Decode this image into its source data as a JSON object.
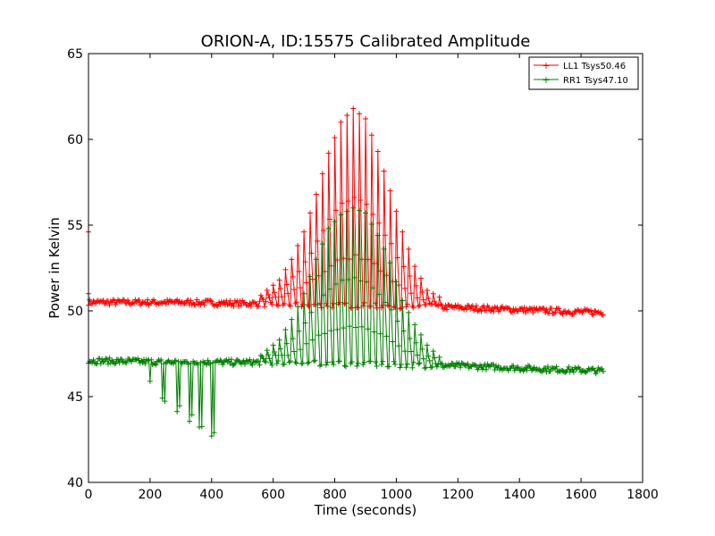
{
  "chart_data": {
    "type": "line",
    "title": "ORION-A, ID:15575 Calibrated Amplitude",
    "xlabel": "Time (seconds)",
    "ylabel": "Power in Kelvin",
    "xlim": [
      0,
      1800
    ],
    "ylim": [
      40,
      65
    ],
    "xticks": [
      "0",
      "200",
      "400",
      "600",
      "800",
      "1000",
      "1200",
      "1400",
      "1600",
      "1800"
    ],
    "yticks": [
      "40",
      "45",
      "50",
      "55",
      "60",
      "65"
    ],
    "grid": false,
    "legend_position": "top-right",
    "series": [
      {
        "name": "LL1 Tsys50.46",
        "color": "#ff0000",
        "marker": "+",
        "baseline": [
          [
            0,
            50.5
          ],
          [
            300,
            50.5
          ],
          [
            600,
            50.4
          ],
          [
            900,
            50.3
          ],
          [
            1200,
            50.2
          ],
          [
            1500,
            50.0
          ],
          [
            1675,
            49.9
          ]
        ],
        "spike_start": [
          0,
          54.6
        ],
        "peak_envelope": [
          [
            560,
            50.9
          ],
          [
            620,
            51.8
          ],
          [
            660,
            53.0
          ],
          [
            700,
            54.6
          ],
          [
            740,
            56.8
          ],
          [
            780,
            59.2
          ],
          [
            820,
            61.0
          ],
          [
            860,
            61.8
          ],
          [
            900,
            61.2
          ],
          [
            940,
            59.3
          ],
          [
            980,
            57.0
          ],
          [
            1020,
            54.6
          ],
          [
            1060,
            52.6
          ],
          [
            1100,
            51.2
          ],
          [
            1140,
            50.8
          ]
        ]
      },
      {
        "name": "RR1 Tsys47.10",
        "color": "#008000",
        "marker": "+",
        "baseline": [
          [
            0,
            47.1
          ],
          [
            300,
            47.0
          ],
          [
            600,
            47.0
          ],
          [
            900,
            46.9
          ],
          [
            1200,
            46.8
          ],
          [
            1500,
            46.6
          ],
          [
            1675,
            46.5
          ]
        ],
        "spike_start": [
          0,
          51.0
        ],
        "dips": [
          [
            200,
            45.5
          ],
          [
            245,
            44.5
          ],
          [
            290,
            44.0
          ],
          [
            330,
            43.5
          ],
          [
            365,
            43.2
          ],
          [
            405,
            42.6
          ]
        ],
        "peak_envelope": [
          [
            560,
            47.4
          ],
          [
            620,
            48.3
          ],
          [
            660,
            49.5
          ],
          [
            700,
            51.0
          ],
          [
            740,
            53.0
          ],
          [
            780,
            54.8
          ],
          [
            820,
            55.6
          ],
          [
            860,
            56.0
          ],
          [
            900,
            55.7
          ],
          [
            940,
            54.4
          ],
          [
            980,
            52.8
          ],
          [
            1020,
            50.6
          ],
          [
            1060,
            49.2
          ],
          [
            1100,
            48.0
          ],
          [
            1140,
            47.3
          ]
        ]
      }
    ]
  }
}
